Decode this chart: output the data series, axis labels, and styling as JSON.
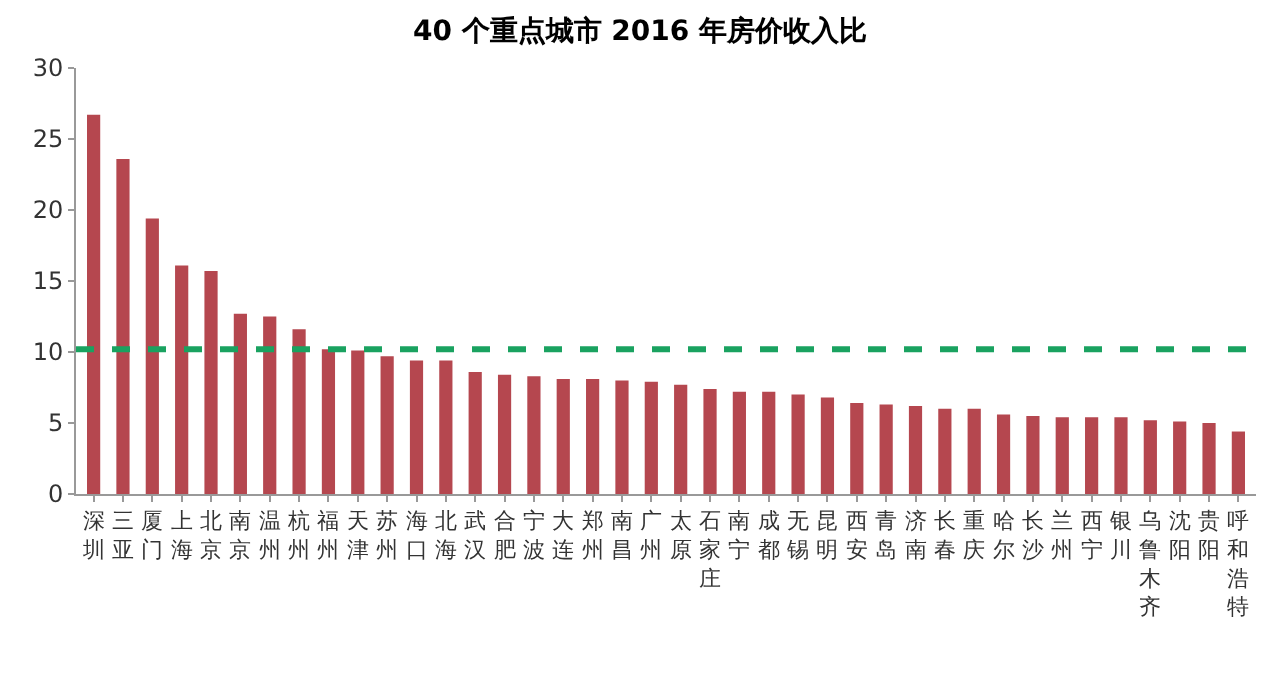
{
  "chart_data": {
    "type": "bar",
    "title": "40 个重点城市 2016 年房价收入比",
    "categories": [
      "深圳",
      "三亚",
      "厦门",
      "上海",
      "北京",
      "南京",
      "温州",
      "杭州",
      "福州",
      "天津",
      "苏州",
      "海口",
      "北海",
      "武汉",
      "合肥",
      "宁波",
      "大连",
      "郑州",
      "南昌",
      "广州",
      "太原",
      "石家庄",
      "南宁",
      "成都",
      "无锡",
      "昆明",
      "西安",
      "青岛",
      "济南",
      "长春",
      "重庆",
      "哈尔",
      "长沙",
      "兰州",
      "西宁",
      "银川",
      "乌鲁木齐",
      "沈阳",
      "贵阳",
      "呼和浩特"
    ],
    "values": [
      26.7,
      23.6,
      19.4,
      16.1,
      15.7,
      12.7,
      12.5,
      11.6,
      10.2,
      10.1,
      9.7,
      9.4,
      9.4,
      8.6,
      8.4,
      8.3,
      8.1,
      8.1,
      8.0,
      7.9,
      7.7,
      7.4,
      7.2,
      7.2,
      7.0,
      6.8,
      6.4,
      6.3,
      6.2,
      6.0,
      6.0,
      5.6,
      5.5,
      5.4,
      5.4,
      5.4,
      5.2,
      5.1,
      5.0,
      4.4
    ],
    "color": "#b5474f",
    "ylim": [
      0,
      30
    ],
    "yticks": [
      0,
      5,
      10,
      15,
      20,
      25,
      30
    ],
    "grid": false,
    "ref_lines": [
      {
        "axis": "y",
        "value": 10.2,
        "label": null,
        "color": "#1aa260",
        "line_style": "dashed"
      }
    ]
  }
}
